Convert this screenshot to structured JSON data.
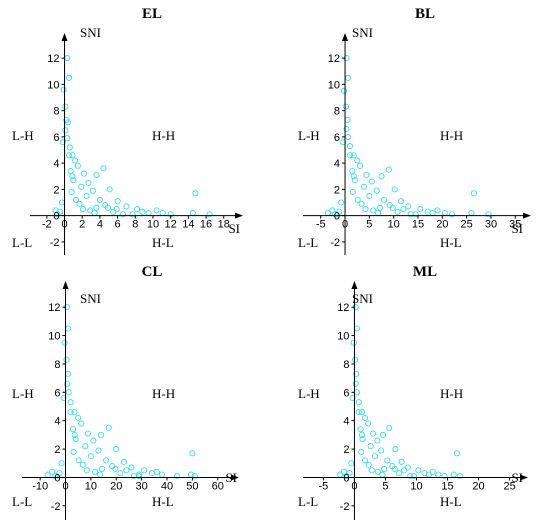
{
  "colors": {
    "points": "#33e0e0",
    "axis": "#000000"
  },
  "chart_data": [
    {
      "type": "scatter",
      "title": "EL",
      "xlabel": "SI",
      "ylabel": "SNI",
      "quadrants": {
        "top_left": "L-H",
        "top_right": "H-H",
        "bottom_left": "L-L",
        "bottom_right": "H-L"
      },
      "xlim": [
        -3,
        19.5
      ],
      "ylim": [
        -3,
        13
      ],
      "xticks": [
        -2,
        0,
        2,
        4,
        6,
        8,
        10,
        12,
        14,
        16,
        18
      ],
      "yticks": [
        -2,
        0,
        2,
        4,
        6,
        8,
        10,
        12
      ],
      "points": [
        [
          0.3,
          12
        ],
        [
          0.5,
          10.5
        ],
        [
          -0.1,
          9.6
        ],
        [
          0.1,
          8.3
        ],
        [
          0.2,
          7.3
        ],
        [
          0.4,
          7.1
        ],
        [
          0.1,
          6.5
        ],
        [
          0.3,
          5.9
        ],
        [
          -0.2,
          5.6
        ],
        [
          0.6,
          5.2
        ],
        [
          0.9,
          4.6
        ],
        [
          1.2,
          4.2
        ],
        [
          1.5,
          3.8
        ],
        [
          0.7,
          3.4
        ],
        [
          2.2,
          3.2
        ],
        [
          3.6,
          3.1
        ],
        [
          4.4,
          3.6
        ],
        [
          2.7,
          2.5
        ],
        [
          1.9,
          2.2
        ],
        [
          3.2,
          1.9
        ],
        [
          5.1,
          2.0
        ],
        [
          4.0,
          1.2
        ],
        [
          6.0,
          1.1
        ],
        [
          3.6,
          0.6
        ],
        [
          7.0,
          0.7
        ],
        [
          5.5,
          0.3
        ],
        [
          8.2,
          0.5
        ],
        [
          9.5,
          0.2
        ],
        [
          7.7,
          0.1
        ],
        [
          12.0,
          0.1
        ],
        [
          14.8,
          1.7
        ],
        [
          14.5,
          0.2
        ],
        [
          16.4,
          0.1
        ],
        [
          2.5,
          1.5
        ],
        [
          1.7,
          0.9
        ],
        [
          2.9,
          0.4
        ],
        [
          4.6,
          0.8
        ],
        [
          1.0,
          2.7
        ],
        [
          0.8,
          1.8
        ],
        [
          1.3,
          1.2
        ],
        [
          5.9,
          0.5
        ],
        [
          3.4,
          0.2
        ],
        [
          0.5,
          4.6
        ],
        [
          0.9,
          3.0
        ],
        [
          2.1,
          0.5
        ],
        [
          6.6,
          0.1
        ],
        [
          4.9,
          0.6
        ],
        [
          8.8,
          0.3
        ],
        [
          11.1,
          0.2
        ],
        [
          10.4,
          0.4
        ],
        [
          -0.5,
          0.3
        ],
        [
          -0.8,
          0.1
        ],
        [
          -0.3,
          1.0
        ],
        [
          -1.0,
          0.4
        ]
      ]
    },
    {
      "type": "scatter",
      "title": "BL",
      "xlabel": "SI",
      "ylabel": "SNI",
      "quadrants": {
        "top_left": "L-H",
        "top_right": "H-H",
        "bottom_left": "L-L",
        "bottom_right": "H-L"
      },
      "xlim": [
        -7,
        37
      ],
      "ylim": [
        -3,
        13
      ],
      "xticks": [
        -5,
        0,
        5,
        10,
        15,
        20,
        25,
        30,
        35
      ],
      "yticks": [
        -2,
        0,
        2,
        4,
        6,
        8,
        10,
        12
      ],
      "points": [
        [
          0.3,
          12
        ],
        [
          0.6,
          10.5
        ],
        [
          -0.2,
          9.5
        ],
        [
          0.2,
          8.3
        ],
        [
          0.5,
          7.3
        ],
        [
          0.3,
          6.6
        ],
        [
          0.6,
          6.0
        ],
        [
          -0.4,
          5.6
        ],
        [
          1.0,
          5.3
        ],
        [
          1.8,
          4.6
        ],
        [
          2.5,
          4.2
        ],
        [
          3.1,
          3.8
        ],
        [
          1.5,
          3.4
        ],
        [
          4.4,
          3.1
        ],
        [
          7.5,
          3.0
        ],
        [
          9.0,
          3.5
        ],
        [
          5.5,
          2.6
        ],
        [
          3.9,
          2.2
        ],
        [
          6.5,
          1.9
        ],
        [
          10.2,
          2.0
        ],
        [
          8.0,
          1.2
        ],
        [
          11.5,
          1.1
        ],
        [
          7.2,
          0.6
        ],
        [
          13.0,
          0.7
        ],
        [
          10.8,
          0.3
        ],
        [
          15.5,
          0.5
        ],
        [
          18.0,
          0.2
        ],
        [
          14.5,
          0.1
        ],
        [
          22.0,
          0.1
        ],
        [
          26.5,
          1.7
        ],
        [
          26.0,
          0.2
        ],
        [
          29.5,
          0.1
        ],
        [
          5.0,
          1.5
        ],
        [
          3.4,
          0.9
        ],
        [
          5.8,
          0.4
        ],
        [
          9.2,
          0.8
        ],
        [
          2.0,
          2.7
        ],
        [
          1.6,
          1.8
        ],
        [
          2.6,
          1.2
        ],
        [
          12.0,
          0.5
        ],
        [
          6.8,
          0.2
        ],
        [
          1.0,
          4.6
        ],
        [
          1.8,
          3.0
        ],
        [
          4.2,
          0.5
        ],
        [
          13.5,
          0.1
        ],
        [
          9.8,
          0.6
        ],
        [
          17.0,
          0.3
        ],
        [
          20.5,
          0.2
        ],
        [
          19.0,
          0.4
        ],
        [
          -1.2,
          0.3
        ],
        [
          -2.0,
          0.1
        ],
        [
          -0.8,
          1.0
        ],
        [
          -2.6,
          0.4
        ],
        [
          -3.5,
          0.2
        ]
      ]
    },
    {
      "type": "scatter",
      "title": "CL",
      "xlabel": "SI",
      "ylabel": "SNI",
      "quadrants": {
        "top_left": "L-H",
        "top_right": "H-H",
        "bottom_left": "L-L",
        "bottom_right": "H-L"
      },
      "xlim": [
        -14,
        66
      ],
      "ylim": [
        -3,
        13
      ],
      "xticks": [
        -10,
        0,
        10,
        20,
        30,
        40,
        50,
        60
      ],
      "yticks": [
        -2,
        0,
        2,
        4,
        6,
        8,
        10,
        12
      ],
      "points": [
        [
          0.5,
          12
        ],
        [
          1.0,
          10.5
        ],
        [
          -0.4,
          9.5
        ],
        [
          0.4,
          8.3
        ],
        [
          1.0,
          7.3
        ],
        [
          0.6,
          6.6
        ],
        [
          1.2,
          6.0
        ],
        [
          -0.8,
          5.6
        ],
        [
          2.0,
          5.3
        ],
        [
          3.5,
          4.6
        ],
        [
          5.0,
          4.2
        ],
        [
          6.2,
          3.8
        ],
        [
          3.0,
          3.4
        ],
        [
          8.8,
          3.1
        ],
        [
          14.0,
          3.0
        ],
        [
          17.0,
          3.5
        ],
        [
          11.0,
          2.6
        ],
        [
          7.8,
          2.2
        ],
        [
          13.0,
          1.9
        ],
        [
          20.0,
          2.0
        ],
        [
          16.0,
          1.2
        ],
        [
          23.0,
          1.1
        ],
        [
          14.4,
          0.6
        ],
        [
          26.0,
          0.7
        ],
        [
          21.6,
          0.3
        ],
        [
          31.0,
          0.5
        ],
        [
          29.0,
          0.2
        ],
        [
          29.0,
          0.1
        ],
        [
          44.0,
          0.1
        ],
        [
          50.0,
          1.7
        ],
        [
          49.5,
          0.2
        ],
        [
          51.0,
          0.1
        ],
        [
          10.0,
          1.5
        ],
        [
          6.8,
          0.9
        ],
        [
          11.6,
          0.4
        ],
        [
          18.4,
          0.8
        ],
        [
          4.0,
          2.7
        ],
        [
          3.2,
          1.8
        ],
        [
          5.2,
          1.2
        ],
        [
          24.0,
          0.5
        ],
        [
          13.6,
          0.2
        ],
        [
          2.0,
          4.6
        ],
        [
          3.6,
          3.0
        ],
        [
          8.4,
          0.5
        ],
        [
          27.0,
          0.1
        ],
        [
          19.6,
          0.6
        ],
        [
          34.0,
          0.3
        ],
        [
          38.0,
          0.2
        ],
        [
          36.0,
          0.4
        ],
        [
          -2.4,
          0.3
        ],
        [
          -4.0,
          0.1
        ],
        [
          -1.6,
          1.0
        ],
        [
          -5.2,
          0.4
        ],
        [
          -7.0,
          0.2
        ]
      ]
    },
    {
      "type": "scatter",
      "title": "ML",
      "xlabel": "SI",
      "ylabel": "SNI",
      "quadrants": {
        "top_left": "L-H",
        "top_right": "H-H",
        "bottom_left": "L-L",
        "bottom_right": "H-L"
      },
      "xlim": [
        -7,
        27
      ],
      "ylim": [
        -3,
        13
      ],
      "xticks": [
        -5,
        0,
        5,
        10,
        15,
        20,
        25
      ],
      "yticks": [
        -2,
        0,
        2,
        4,
        6,
        8,
        10,
        12
      ],
      "points": [
        [
          0.2,
          12
        ],
        [
          0.4,
          10.5
        ],
        [
          -0.1,
          9.5
        ],
        [
          0.1,
          8.3
        ],
        [
          0.3,
          7.3
        ],
        [
          0.2,
          6.6
        ],
        [
          0.4,
          6.0
        ],
        [
          -0.3,
          5.6
        ],
        [
          0.7,
          5.3
        ],
        [
          1.2,
          4.6
        ],
        [
          1.7,
          4.2
        ],
        [
          2.2,
          3.8
        ],
        [
          1.0,
          3.4
        ],
        [
          3.0,
          3.1
        ],
        [
          4.6,
          3.0
        ],
        [
          5.6,
          3.5
        ],
        [
          3.7,
          2.6
        ],
        [
          2.6,
          2.2
        ],
        [
          4.3,
          1.9
        ],
        [
          6.6,
          2.0
        ],
        [
          5.3,
          1.2
        ],
        [
          7.6,
          1.1
        ],
        [
          4.8,
          0.6
        ],
        [
          8.6,
          0.7
        ],
        [
          7.2,
          0.3
        ],
        [
          10.3,
          0.5
        ],
        [
          12.0,
          0.2
        ],
        [
          9.6,
          0.1
        ],
        [
          14.5,
          0.1
        ],
        [
          16.5,
          1.7
        ],
        [
          16.0,
          0.2
        ],
        [
          17.0,
          0.1
        ],
        [
          3.3,
          1.5
        ],
        [
          2.3,
          0.9
        ],
        [
          3.8,
          0.4
        ],
        [
          6.1,
          0.8
        ],
        [
          1.3,
          2.7
        ],
        [
          1.1,
          1.8
        ],
        [
          1.7,
          1.2
        ],
        [
          8.0,
          0.5
        ],
        [
          4.5,
          0.2
        ],
        [
          0.7,
          4.6
        ],
        [
          1.2,
          3.0
        ],
        [
          2.8,
          0.5
        ],
        [
          9.0,
          0.1
        ],
        [
          6.5,
          0.6
        ],
        [
          11.3,
          0.3
        ],
        [
          13.5,
          0.2
        ],
        [
          12.6,
          0.4
        ],
        [
          -0.8,
          0.3
        ],
        [
          -1.3,
          0.1
        ],
        [
          -0.5,
          1.0
        ],
        [
          -1.7,
          0.4
        ],
        [
          -2.3,
          0.2
        ]
      ]
    }
  ]
}
